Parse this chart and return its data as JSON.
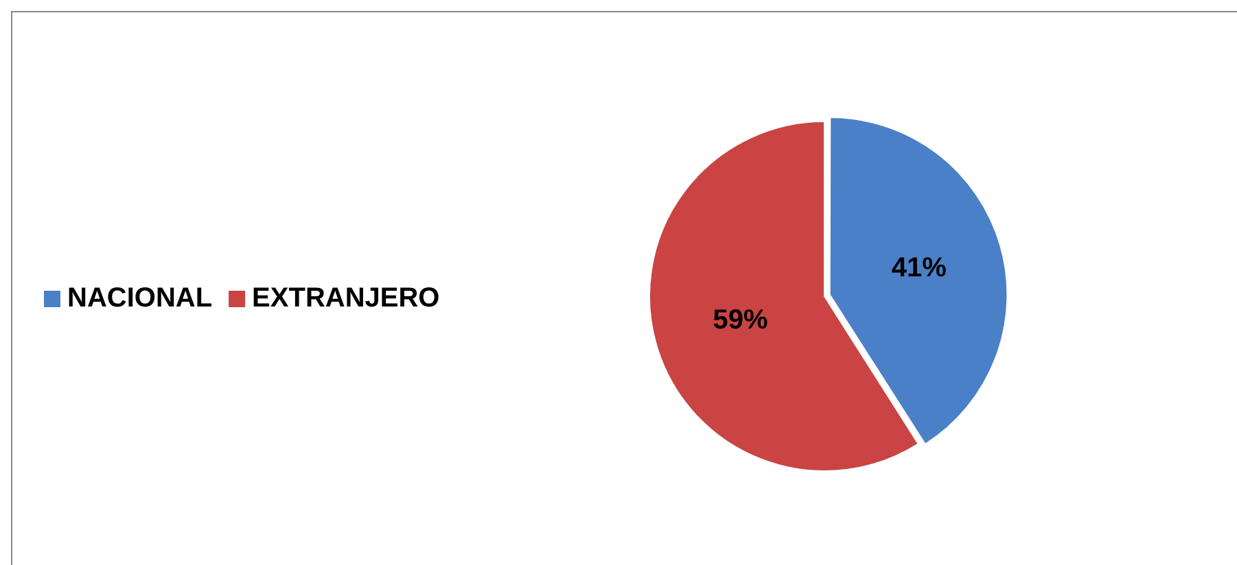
{
  "chart_data": {
    "type": "pie",
    "categories": [
      "NACIONAL",
      "EXTRANJERO"
    ],
    "values": [
      41,
      59
    ],
    "colors": [
      "#4a80c8",
      "#c94442"
    ],
    "value_labels": [
      "41%",
      "59%"
    ],
    "legend": "left"
  }
}
